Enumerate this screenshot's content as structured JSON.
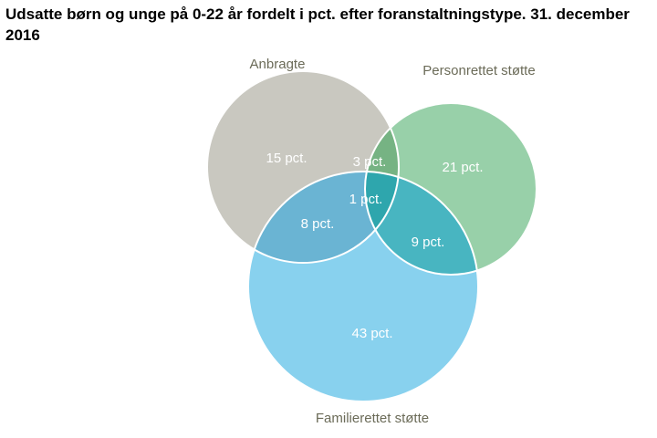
{
  "title": "Udsatte børn og unge på 0-22 år fordelt i pct. efter foranstaltningstype. 31. december 2016",
  "sets": {
    "anbragte": {
      "label": "Anbragte",
      "color": "#c9c8c0"
    },
    "personrettet": {
      "label": "Personrettet støtte",
      "color": "#98d0a9"
    },
    "familierettet": {
      "label": "Familierettet støtte",
      "color": "#88d1ee"
    }
  },
  "regions": {
    "anbragte_only": {
      "value": "15 pct.",
      "color": "#c9c8c0"
    },
    "personrettet_only": {
      "value": "21 pct.",
      "color": "#98d0a9"
    },
    "familierettet_only": {
      "value": "43 pct.",
      "color": "#88d1ee"
    },
    "anbragte_personrettet": {
      "value": "3 pct.",
      "color": "#76b383"
    },
    "anbragte_familierettet": {
      "value": "8 pct.",
      "color": "#6ab4d3"
    },
    "personrettet_familierettet": {
      "value": "9 pct.",
      "color": "#48b5c1"
    },
    "all_three": {
      "value": "1 pct.",
      "color": "#2ea6ad"
    }
  }
}
